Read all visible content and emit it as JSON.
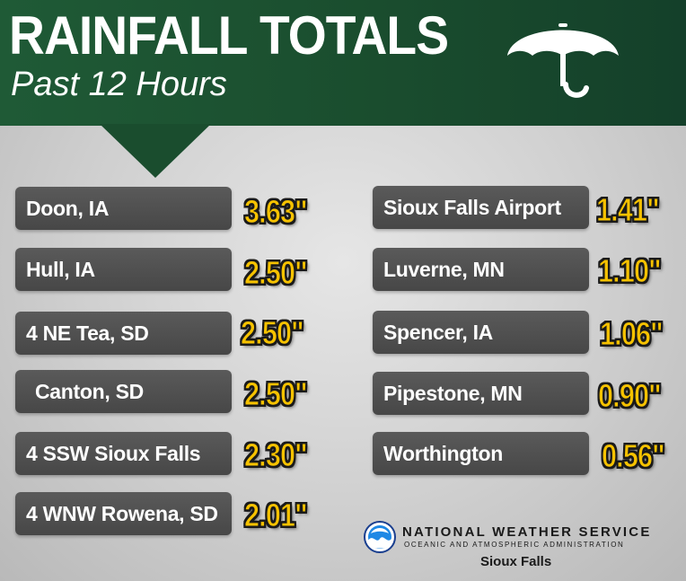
{
  "header": {
    "title": "RAINFALL TOTALS",
    "subtitle": "Past 12 Hours",
    "icon": "umbrella-icon",
    "colors": {
      "background": "#1a4d2e",
      "text": "#ffffff"
    }
  },
  "left_column": [
    {
      "location": "Doon, IA",
      "rainfall": "3.63\""
    },
    {
      "location": "Hull, IA",
      "rainfall": "2.50\""
    },
    {
      "location": "4 NE Tea, SD",
      "rainfall": "2.50\""
    },
    {
      "location": "Canton, SD",
      "rainfall": "2.50\""
    },
    {
      "location": "4 SSW Sioux Falls",
      "rainfall": "2.30\""
    },
    {
      "location": "4 WNW Rowena, SD",
      "rainfall": "2.01\""
    }
  ],
  "right_column": [
    {
      "location": "Sioux Falls Airport",
      "rainfall": "1.41\""
    },
    {
      "location": "Luverne, MN",
      "rainfall": "1.10\""
    },
    {
      "location": "Spencer, IA",
      "rainfall": "1.06\""
    },
    {
      "location": "Pipestone, MN",
      "rainfall": "0.90\""
    },
    {
      "location": "Worthington",
      "rainfall": "0.56\""
    }
  ],
  "branding": {
    "logo": "noaa-logo",
    "name": "NATIONAL WEATHER SERVICE",
    "subname": "OCEANIC AND ATMOSPHERIC ADMINISTRATION",
    "office": "Sioux Falls"
  },
  "colors": {
    "value_fill": "#f6c200",
    "value_outline": "#1a1a1a",
    "label_background": "#4f4f4f"
  }
}
